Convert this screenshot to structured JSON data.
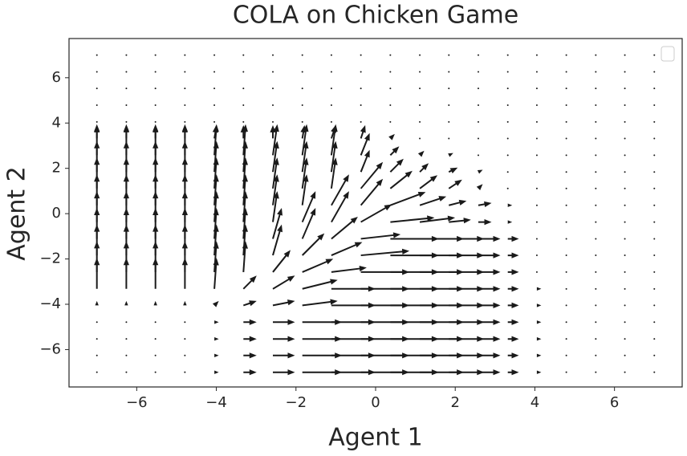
{
  "chart_data": {
    "type": "quiver",
    "title": "COLA on Chicken Game",
    "xlabel": "Agent 1",
    "ylabel": "Agent 2",
    "x": [
      -7,
      -6.26,
      -5.53,
      -4.79,
      -4.05,
      -3.32,
      -2.58,
      -1.84,
      -1.11,
      -0.37,
      0.37,
      1.11,
      1.84,
      2.58,
      3.32,
      4.05,
      4.79,
      5.53,
      6.26,
      7
    ],
    "y": [
      -7,
      -6.26,
      -5.53,
      -4.79,
      -4.05,
      -3.32,
      -2.58,
      -1.84,
      -1.11,
      -0.37,
      0.37,
      1.11,
      1.84,
      2.58,
      3.32,
      4.05,
      4.79,
      5.53,
      6.26,
      7
    ],
    "u": [
      [
        0,
        0,
        0,
        0,
        0.1,
        0.3,
        0.5,
        0.9,
        1.0,
        1.1,
        1.1,
        1.0,
        0.8,
        0.5,
        0.25,
        0.1,
        0,
        0,
        0,
        0
      ],
      [
        0,
        0,
        0,
        0,
        0.1,
        0.3,
        0.5,
        0.9,
        1.0,
        1.1,
        1.1,
        1.0,
        0.8,
        0.5,
        0.25,
        0.1,
        0,
        0,
        0,
        0
      ],
      [
        0,
        0,
        0,
        0,
        0.1,
        0.3,
        0.5,
        0.9,
        1.0,
        1.1,
        1.1,
        1.0,
        0.8,
        0.5,
        0.25,
        0.1,
        0,
        0,
        0,
        0
      ],
      [
        0,
        0,
        0,
        0,
        0.1,
        0.3,
        0.5,
        0.9,
        1.0,
        1.1,
        1.1,
        1.0,
        0.8,
        0.5,
        0.25,
        0.1,
        0,
        0,
        0,
        0
      ],
      [
        0,
        0,
        0,
        0,
        0.1,
        0.3,
        0.5,
        0.8,
        1.0,
        1.1,
        1.1,
        1.0,
        0.8,
        0.5,
        0.25,
        0.1,
        0,
        0,
        0,
        0
      ],
      [
        0,
        0,
        0,
        0,
        0.05,
        0.3,
        0.5,
        0.8,
        1.0,
        1.1,
        1.1,
        1.0,
        0.8,
        0.5,
        0.25,
        0.1,
        0,
        0,
        0,
        0
      ],
      [
        0,
        0,
        0,
        0,
        0.05,
        0.05,
        0.4,
        0.7,
        0.8,
        1.1,
        1.1,
        1.0,
        0.8,
        0.5,
        0.25,
        0,
        0,
        0,
        0,
        0
      ],
      [
        0,
        0,
        0,
        0,
        0.05,
        0.05,
        0.2,
        0.5,
        0.7,
        1.1,
        1.1,
        1.0,
        0.8,
        0.5,
        0.25,
        0,
        0,
        0,
        0,
        0
      ],
      [
        0,
        0,
        0,
        0,
        0.05,
        0.05,
        0.2,
        0.3,
        0.6,
        0.9,
        1.1,
        1.0,
        0.8,
        0.5,
        0.25,
        0,
        0,
        0,
        0,
        0
      ],
      [
        0,
        0,
        0,
        0,
        0.05,
        0.05,
        0.1,
        0.3,
        0.4,
        0.7,
        1.0,
        0.8,
        0.5,
        0.3,
        0.1,
        0,
        0,
        0,
        0,
        0
      ],
      [
        0,
        0,
        0,
        0,
        0.05,
        0.05,
        0.1,
        0.1,
        0.4,
        0.5,
        0.8,
        0.6,
        0.4,
        0.3,
        0.1,
        0,
        0,
        0,
        0,
        0
      ],
      [
        0,
        0,
        0,
        0,
        0.05,
        0.05,
        0.1,
        0.1,
        0.1,
        0.5,
        0.5,
        0.4,
        0.3,
        0.1,
        0,
        0,
        0,
        0,
        0,
        0
      ],
      [
        0,
        0,
        0,
        0,
        0.05,
        0.05,
        0.1,
        0.1,
        0.1,
        0.2,
        0.3,
        0.2,
        0.2,
        0.1,
        0,
        0,
        0,
        0,
        0,
        0
      ],
      [
        0,
        0,
        0,
        0,
        0.05,
        0.05,
        0.1,
        0.1,
        0.1,
        0.2,
        0.2,
        0.1,
        0.1,
        0,
        0,
        0,
        0,
        0,
        0,
        0
      ],
      [
        0,
        0,
        0,
        0,
        0.05,
        0,
        0,
        0.05,
        0.1,
        0.1,
        0.1,
        0,
        0,
        0,
        0,
        0,
        0,
        0,
        0,
        0
      ],
      [
        0,
        0,
        0,
        0,
        0,
        0,
        0,
        0,
        0,
        0,
        0,
        0,
        0,
        0,
        0,
        0,
        0,
        0,
        0,
        0
      ],
      [
        0,
        0,
        0,
        0,
        0,
        0,
        0,
        0,
        0,
        0,
        0,
        0,
        0,
        0,
        0,
        0,
        0,
        0,
        0,
        0
      ],
      [
        0,
        0,
        0,
        0,
        0,
        0,
        0,
        0,
        0,
        0,
        0,
        0,
        0,
        0,
        0,
        0,
        0,
        0,
        0,
        0
      ],
      [
        0,
        0,
        0,
        0,
        0,
        0,
        0,
        0,
        0,
        0,
        0,
        0,
        0,
        0,
        0,
        0,
        0,
        0,
        0,
        0
      ],
      [
        0,
        0,
        0,
        0,
        0,
        0,
        0,
        0,
        0,
        0,
        0,
        0,
        0,
        0,
        0,
        0,
        0,
        0,
        0,
        0
      ]
    ],
    "v": [
      [
        0,
        0,
        0,
        0,
        0,
        0,
        0,
        0,
        0,
        0,
        0,
        0,
        0,
        0,
        0,
        0,
        0,
        0,
        0,
        0
      ],
      [
        0,
        0,
        0,
        0,
        0,
        0,
        0,
        0,
        0,
        0,
        0,
        0,
        0,
        0,
        0,
        0,
        0,
        0,
        0,
        0
      ],
      [
        0,
        0,
        0,
        0,
        0,
        0,
        0,
        0,
        0,
        0,
        0,
        0,
        0,
        0,
        0,
        0,
        0,
        0,
        0,
        0
      ],
      [
        0,
        0,
        0,
        0,
        0,
        0,
        0,
        0,
        0,
        0,
        0,
        0,
        0,
        0,
        0,
        0,
        0,
        0,
        0,
        0
      ],
      [
        0.1,
        0.1,
        0.1,
        0.1,
        0.1,
        0.1,
        0.1,
        0.1,
        0,
        0,
        0,
        0,
        0,
        0,
        0,
        0,
        0,
        0,
        0,
        0
      ],
      [
        0.7,
        0.7,
        0.7,
        0.7,
        0.7,
        0.3,
        0.3,
        0.2,
        0,
        0,
        0,
        0,
        0,
        0,
        0,
        0,
        0,
        0,
        0,
        0
      ],
      [
        0.7,
        0.7,
        0.7,
        0.7,
        0.7,
        0.7,
        0.5,
        0.3,
        0.1,
        0,
        0,
        0,
        0,
        0,
        0,
        0,
        0,
        0,
        0,
        0
      ],
      [
        0.7,
        0.7,
        0.7,
        0.7,
        0.7,
        0.7,
        0.7,
        0.5,
        0.3,
        0.1,
        0,
        0,
        0,
        0,
        0,
        0,
        0,
        0,
        0,
        0
      ],
      [
        0.7,
        0.7,
        0.7,
        0.7,
        0.7,
        0.7,
        0.7,
        0.7,
        0.5,
        0.1,
        0,
        0,
        0,
        0,
        0,
        0,
        0,
        0,
        0,
        0
      ],
      [
        0.7,
        0.7,
        0.7,
        0.7,
        0.7,
        0.7,
        0.7,
        0.7,
        0.7,
        0.4,
        0.1,
        0.1,
        0.05,
        0,
        0,
        0,
        0,
        0,
        0,
        0
      ],
      [
        0.7,
        0.7,
        0.7,
        0.7,
        0.7,
        0.7,
        0.7,
        0.7,
        0.7,
        0.6,
        0.3,
        0.2,
        0.1,
        0.05,
        0,
        0,
        0,
        0,
        0,
        0
      ],
      [
        0.7,
        0.7,
        0.7,
        0.7,
        0.7,
        0.7,
        0.7,
        0.7,
        0.7,
        0.6,
        0.4,
        0.3,
        0.2,
        0.1,
        0,
        0,
        0,
        0,
        0,
        0
      ],
      [
        0.7,
        0.7,
        0.7,
        0.7,
        0.7,
        0.7,
        0.7,
        0.7,
        0.7,
        0.5,
        0.3,
        0.2,
        0.1,
        0.05,
        0,
        0,
        0,
        0,
        0,
        0
      ],
      [
        0.7,
        0.7,
        0.7,
        0.7,
        0.7,
        0.7,
        0.7,
        0.7,
        0.7,
        0.5,
        0.2,
        0.1,
        0.05,
        0,
        0,
        0,
        0,
        0,
        0,
        0
      ],
      [
        0.3,
        0.3,
        0.3,
        0.3,
        0.3,
        0.3,
        0.3,
        0.3,
        0.3,
        0.3,
        0.1,
        0,
        0,
        0,
        0,
        0,
        0,
        0,
        0,
        0
      ],
      [
        0,
        0,
        0,
        0,
        0,
        0,
        0,
        0,
        0,
        0,
        0,
        0,
        0,
        0,
        0,
        0,
        0,
        0,
        0,
        0
      ],
      [
        0,
        0,
        0,
        0,
        0,
        0,
        0,
        0,
        0,
        0,
        0,
        0,
        0,
        0,
        0,
        0,
        0,
        0,
        0,
        0
      ],
      [
        0,
        0,
        0,
        0,
        0,
        0,
        0,
        0,
        0,
        0,
        0,
        0,
        0,
        0,
        0,
        0,
        0,
        0,
        0,
        0
      ],
      [
        0,
        0,
        0,
        0,
        0,
        0,
        0,
        0,
        0,
        0,
        0,
        0,
        0,
        0,
        0,
        0,
        0,
        0,
        0,
        0
      ],
      [
        0,
        0,
        0,
        0,
        0,
        0,
        0,
        0,
        0,
        0,
        0,
        0,
        0,
        0,
        0,
        0,
        0,
        0,
        0,
        0
      ]
    ],
    "color": "#1a1a1a",
    "xlim": [
      -7.7,
      7.7
    ],
    "ylim": [
      -7.65,
      7.73
    ],
    "xticks": [
      {
        "value": -6,
        "label": "−6"
      },
      {
        "value": -4,
        "label": "−4"
      },
      {
        "value": -2,
        "label": "−2"
      },
      0,
      2,
      4,
      6
    ],
    "yticks": [
      {
        "value": -6,
        "label": "−6"
      },
      {
        "value": -4,
        "label": "−4"
      },
      {
        "value": -2,
        "label": "−2"
      },
      0,
      2,
      4,
      6
    ],
    "legend": "upper right"
  }
}
